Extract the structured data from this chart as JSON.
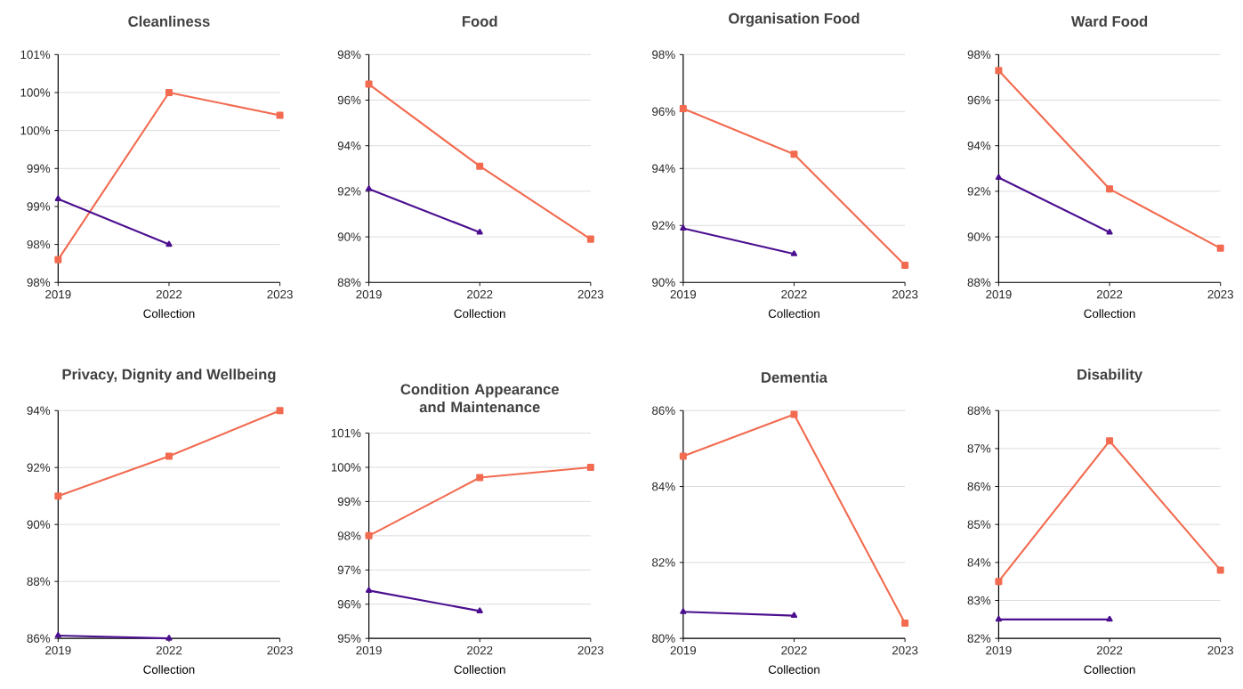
{
  "chart_data": [
    {
      "type": "line",
      "title": "Cleanliness",
      "xlabel": "Collection",
      "categories": [
        "2019",
        "2022",
        "2023"
      ],
      "grid": "y",
      "ylim": [
        97.5,
        100.5
      ],
      "yticks": [
        {
          "value": 97.5,
          "label": "98%"
        },
        {
          "value": 98,
          "label": "98%"
        },
        {
          "value": 98.5,
          "label": "99%"
        },
        {
          "value": 99,
          "label": "99%"
        },
        {
          "value": 99.5,
          "label": "100%"
        },
        {
          "value": 100,
          "label": "100%"
        },
        {
          "value": 100.5,
          "label": "101%"
        }
      ],
      "series": [
        {
          "color": "#f26b50",
          "marker": "square",
          "values": [
            97.8,
            100.0,
            99.7
          ]
        },
        {
          "color": "#4b0f8f",
          "marker": "triangle",
          "values": [
            98.6,
            98.0,
            null
          ]
        }
      ]
    },
    {
      "type": "line",
      "title": "Food",
      "xlabel": "Collection",
      "categories": [
        "2019",
        "2022",
        "2023"
      ],
      "grid": "y",
      "ylim": [
        88,
        98
      ],
      "yticks": [
        {
          "value": 88,
          "label": "88%"
        },
        {
          "value": 90,
          "label": "90%"
        },
        {
          "value": 92,
          "label": "92%"
        },
        {
          "value": 94,
          "label": "94%"
        },
        {
          "value": 96,
          "label": "96%"
        },
        {
          "value": 98,
          "label": "98%"
        }
      ],
      "series": [
        {
          "color": "#f26b50",
          "marker": "square",
          "values": [
            96.7,
            93.1,
            89.9
          ]
        },
        {
          "color": "#4b0f8f",
          "marker": "triangle",
          "values": [
            92.1,
            90.2,
            null
          ]
        }
      ]
    },
    {
      "type": "line",
      "title": "Organisation Food",
      "xlabel": "Collection",
      "categories": [
        "2019",
        "2022",
        "2023"
      ],
      "grid": "y",
      "ylim": [
        90,
        98
      ],
      "yticks": [
        {
          "value": 90,
          "label": "90%"
        },
        {
          "value": 92,
          "label": "92%"
        },
        {
          "value": 94,
          "label": "94%"
        },
        {
          "value": 96,
          "label": "96%"
        },
        {
          "value": 98,
          "label": "98%"
        }
      ],
      "series": [
        {
          "color": "#f26b50",
          "marker": "square",
          "values": [
            96.1,
            94.5,
            90.6
          ]
        },
        {
          "color": "#4b0f8f",
          "marker": "triangle",
          "values": [
            91.9,
            91.0,
            null
          ]
        }
      ]
    },
    {
      "type": "line",
      "title": "Ward Food",
      "xlabel": "Collection",
      "categories": [
        "2019",
        "2022",
        "2023"
      ],
      "grid": "y",
      "ylim": [
        88,
        98
      ],
      "yticks": [
        {
          "value": 88,
          "label": "88%"
        },
        {
          "value": 90,
          "label": "90%"
        },
        {
          "value": 92,
          "label": "92%"
        },
        {
          "value": 94,
          "label": "94%"
        },
        {
          "value": 96,
          "label": "96%"
        },
        {
          "value": 98,
          "label": "98%"
        }
      ],
      "series": [
        {
          "color": "#f26b50",
          "marker": "square",
          "values": [
            97.3,
            92.1,
            89.5
          ]
        },
        {
          "color": "#4b0f8f",
          "marker": "triangle",
          "values": [
            92.6,
            90.2,
            null
          ]
        }
      ]
    },
    {
      "type": "line",
      "title": "Privacy, Dignity and Wellbeing",
      "xlabel": "Collection",
      "categories": [
        "2019",
        "2022",
        "2023"
      ],
      "grid": "y",
      "ylim": [
        86,
        94
      ],
      "yticks": [
        {
          "value": 86,
          "label": "86%"
        },
        {
          "value": 88,
          "label": "88%"
        },
        {
          "value": 90,
          "label": "90%"
        },
        {
          "value": 92,
          "label": "92%"
        },
        {
          "value": 94,
          "label": "94%"
        }
      ],
      "series": [
        {
          "color": "#f26b50",
          "marker": "square",
          "values": [
            91.0,
            92.4,
            94.0
          ]
        },
        {
          "color": "#4b0f8f",
          "marker": "triangle",
          "values": [
            86.1,
            86.0,
            null
          ]
        }
      ]
    },
    {
      "type": "line",
      "title": "Condition Appearance and Maintenance",
      "xlabel": "Collection",
      "categories": [
        "2019",
        "2022",
        "2023"
      ],
      "grid": "y",
      "ylim": [
        95,
        101
      ],
      "yticks": [
        {
          "value": 95,
          "label": "95%"
        },
        {
          "value": 96,
          "label": "96%"
        },
        {
          "value": 97,
          "label": "97%"
        },
        {
          "value": 98,
          "label": "98%"
        },
        {
          "value": 99,
          "label": "99%"
        },
        {
          "value": 100,
          "label": "100%"
        },
        {
          "value": 101,
          "label": "101%"
        }
      ],
      "series": [
        {
          "color": "#f26b50",
          "marker": "square",
          "values": [
            98.0,
            99.7,
            100.0
          ]
        },
        {
          "color": "#4b0f8f",
          "marker": "triangle",
          "values": [
            96.4,
            95.8,
            null
          ]
        }
      ]
    },
    {
      "type": "line",
      "title": "Dementia",
      "xlabel": "Collection",
      "categories": [
        "2019",
        "2022",
        "2023"
      ],
      "grid": "y",
      "ylim": [
        80,
        86
      ],
      "yticks": [
        {
          "value": 80,
          "label": "80%"
        },
        {
          "value": 82,
          "label": "82%"
        },
        {
          "value": 84,
          "label": "84%"
        },
        {
          "value": 86,
          "label": "86%"
        }
      ],
      "series": [
        {
          "color": "#f26b50",
          "marker": "square",
          "values": [
            84.8,
            85.9,
            80.4
          ]
        },
        {
          "color": "#4b0f8f",
          "marker": "triangle",
          "values": [
            80.7,
            80.6,
            null
          ]
        }
      ]
    },
    {
      "type": "line",
      "title": "Disability",
      "xlabel": "Collection",
      "categories": [
        "2019",
        "2022",
        "2023"
      ],
      "grid": "y",
      "ylim": [
        82,
        88
      ],
      "yticks": [
        {
          "value": 82,
          "label": "82%"
        },
        {
          "value": 83,
          "label": "83%"
        },
        {
          "value": 84,
          "label": "84%"
        },
        {
          "value": 85,
          "label": "85%"
        },
        {
          "value": 86,
          "label": "86%"
        },
        {
          "value": 87,
          "label": "87%"
        },
        {
          "value": 88,
          "label": "88%"
        }
      ],
      "series": [
        {
          "color": "#f26b50",
          "marker": "square",
          "values": [
            83.5,
            87.2,
            83.8
          ]
        },
        {
          "color": "#4b0f8f",
          "marker": "triangle",
          "values": [
            82.5,
            82.5,
            null
          ]
        }
      ]
    }
  ]
}
